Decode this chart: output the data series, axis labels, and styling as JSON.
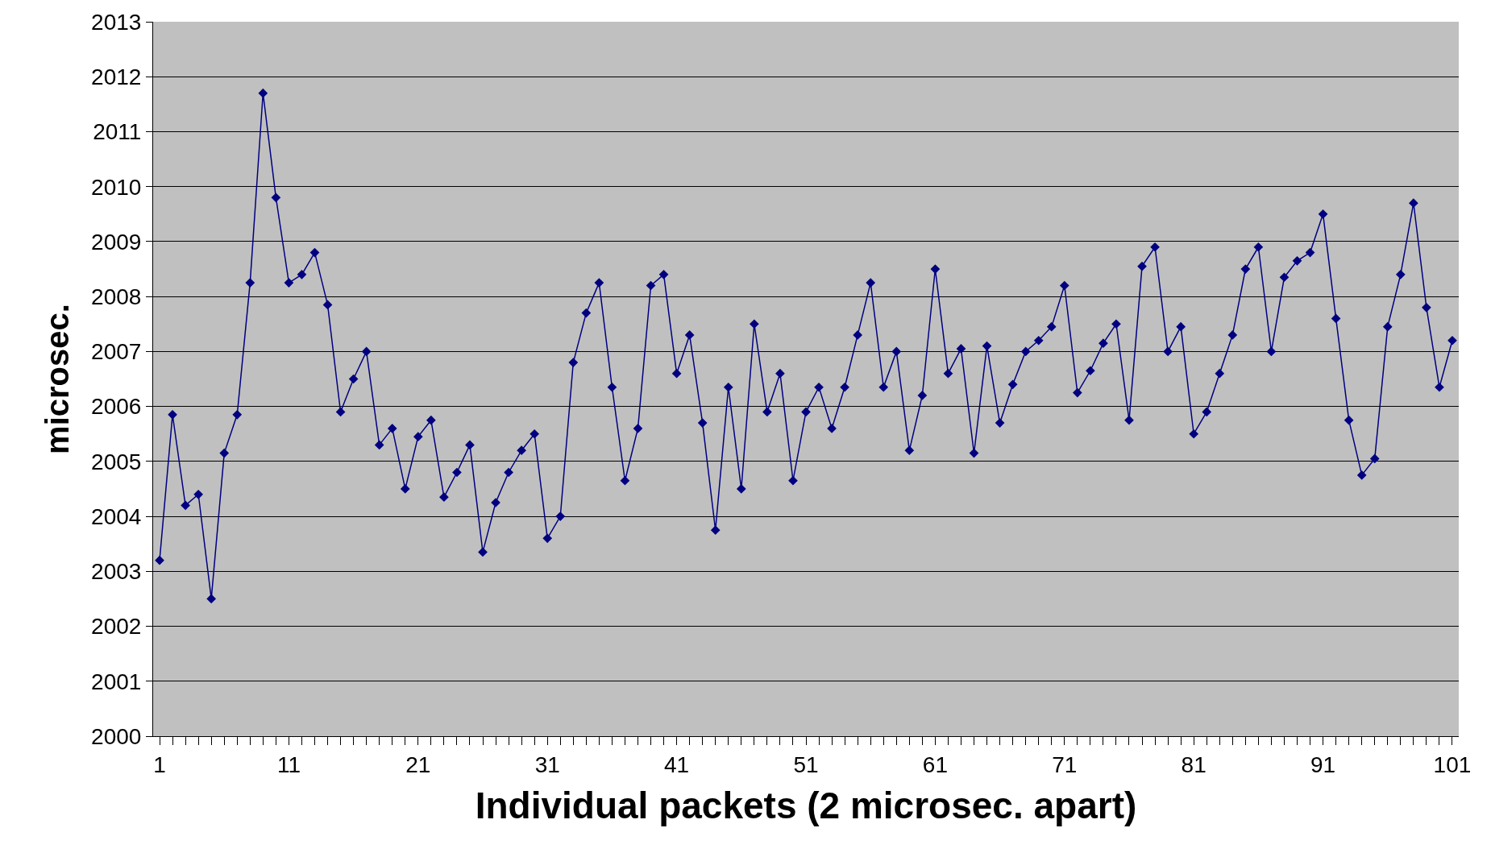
{
  "chart_data": {
    "type": "line",
    "xlabel": "Individual packets (2 microsec. apart)",
    "ylabel": "microsec.",
    "categories": [
      "1",
      null,
      null,
      null,
      null,
      null,
      null,
      null,
      null,
      null,
      "11",
      null,
      null,
      null,
      null,
      null,
      null,
      null,
      null,
      null,
      "21",
      null,
      null,
      null,
      null,
      null,
      null,
      null,
      null,
      null,
      "31",
      null,
      null,
      null,
      null,
      null,
      null,
      null,
      null,
      null,
      "41",
      null,
      null,
      null,
      null,
      null,
      null,
      null,
      null,
      null,
      "51",
      null,
      null,
      null,
      null,
      null,
      null,
      null,
      null,
      null,
      "61",
      null,
      null,
      null,
      null,
      null,
      null,
      null,
      null,
      null,
      "71",
      null,
      null,
      null,
      null,
      null,
      null,
      null,
      null,
      null,
      "81",
      null,
      null,
      null,
      null,
      null,
      null,
      null,
      null,
      null,
      "91",
      null,
      null,
      null,
      null,
      null,
      null,
      null,
      null,
      null,
      "101"
    ],
    "series": [
      {
        "color": "#000080",
        "values": [
          2003.2,
          2005.85,
          2004.2,
          2004.4,
          2002.5,
          2005.15,
          2005.85,
          2008.25,
          2011.7,
          2009.8,
          2008.25,
          2008.4,
          2008.8,
          2007.85,
          2005.9,
          2006.5,
          2007.0,
          2005.3,
          2005.6,
          2004.5,
          2005.45,
          2005.75,
          2004.35,
          2004.8,
          2005.3,
          2003.35,
          2004.25,
          2004.8,
          2005.2,
          2005.5,
          2003.6,
          2004.0,
          2006.8,
          2007.7,
          2008.25,
          2006.35,
          2004.65,
          2005.6,
          2008.2,
          2008.4,
          2006.6,
          2007.3,
          2005.7,
          2003.75,
          2006.35,
          2004.5,
          2007.5,
          2005.9,
          2006.6,
          2004.65,
          2005.9,
          2006.35,
          2005.6,
          2006.35,
          2007.3,
          2008.25,
          2006.35,
          2007.0,
          2005.2,
          2006.2,
          2008.5,
          2006.6,
          2007.05,
          2005.15,
          2007.1,
          2005.7,
          2006.4,
          2007.0,
          2007.2,
          2007.45,
          2008.2,
          2006.25,
          2006.65,
          2007.15,
          2007.5,
          2005.75,
          2008.55,
          2008.9,
          2007.0,
          2007.45,
          2005.5,
          2005.9,
          2006.6,
          2007.3,
          2008.5,
          2008.9,
          2007.0,
          2008.35,
          2008.65,
          2008.8,
          2009.5,
          2007.6,
          2005.75,
          2004.75,
          2005.05,
          2007.45,
          2008.4,
          2009.7,
          2007.8,
          2006.35,
          2007.2
        ]
      }
    ],
    "ylim": [
      2000,
      2013
    ],
    "yticks": [
      2000,
      2001,
      2002,
      2003,
      2004,
      2005,
      2006,
      2007,
      2008,
      2009,
      2010,
      2011,
      2012,
      2013
    ],
    "grid": "y",
    "marker": "diamond",
    "line_style": "solid"
  }
}
